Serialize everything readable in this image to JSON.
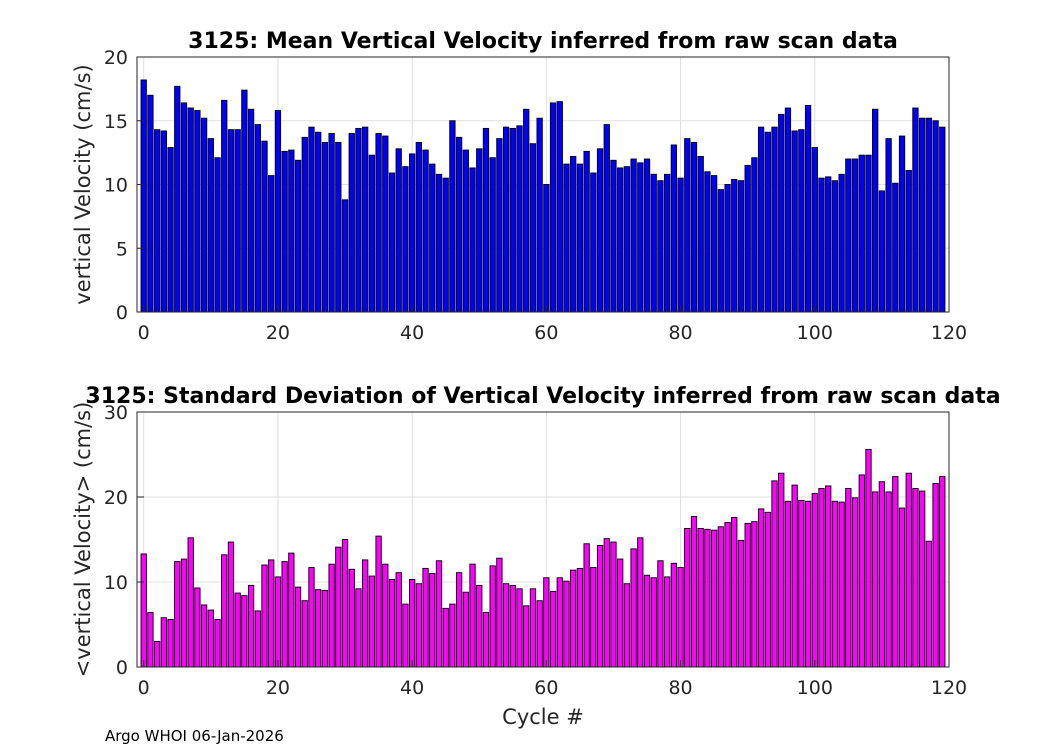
{
  "footer": "Argo WHOI 06-Jan-2026",
  "chart_data": [
    {
      "type": "bar",
      "title": "3125: Mean Vertical Velocity inferred from raw scan data",
      "xlabel": "",
      "ylabel": "vertical Velocity (cm/s)",
      "xlim": [
        -1,
        120
      ],
      "ylim": [
        0,
        20
      ],
      "xticks": [
        "0",
        "20",
        "40",
        "60",
        "80",
        "100",
        "120"
      ],
      "yticks": [
        "0",
        "5",
        "10",
        "15",
        "20"
      ],
      "bar_color": "#0000ff",
      "x": [
        0,
        1,
        2,
        3,
        4,
        5,
        6,
        7,
        8,
        9,
        10,
        11,
        12,
        13,
        14,
        15,
        16,
        17,
        18,
        19,
        20,
        21,
        22,
        23,
        24,
        25,
        26,
        27,
        28,
        29,
        30,
        31,
        32,
        33,
        34,
        35,
        36,
        37,
        38,
        39,
        40,
        41,
        42,
        43,
        44,
        45,
        46,
        47,
        48,
        49,
        50,
        51,
        52,
        53,
        54,
        55,
        56,
        57,
        58,
        59,
        60,
        61,
        62,
        63,
        64,
        65,
        66,
        67,
        68,
        69,
        70,
        71,
        72,
        73,
        74,
        75,
        76,
        77,
        78,
        79,
        80,
        81,
        82,
        83,
        84,
        85,
        86,
        87,
        88,
        89,
        90,
        91,
        92,
        93,
        94,
        95,
        96,
        97,
        98,
        99,
        100,
        101,
        102,
        103,
        104,
        105,
        106,
        107,
        108,
        109,
        110,
        111,
        112,
        113,
        114,
        115,
        116,
        117,
        118,
        119
      ],
      "values": [
        18.2,
        17.0,
        14.3,
        14.2,
        12.9,
        17.7,
        16.4,
        16.0,
        15.8,
        15.2,
        13.6,
        12.1,
        16.6,
        14.3,
        14.3,
        17.4,
        15.9,
        14.7,
        13.4,
        10.7,
        15.8,
        12.6,
        12.7,
        11.9,
        13.7,
        14.5,
        14.1,
        13.3,
        14.0,
        13.3,
        8.8,
        14.0,
        14.4,
        14.5,
        12.3,
        14.0,
        13.8,
        10.9,
        12.8,
        11.4,
        12.4,
        13.3,
        12.7,
        11.6,
        10.8,
        10.5,
        15.0,
        13.7,
        12.7,
        11.3,
        12.8,
        14.4,
        12.1,
        13.6,
        14.5,
        14.4,
        14.6,
        15.9,
        13.2,
        15.2,
        10.0,
        16.4,
        16.5,
        11.6,
        12.2,
        11.6,
        12.6,
        10.9,
        12.8,
        14.7,
        11.9,
        11.3,
        11.4,
        12.0,
        11.7,
        12.0,
        10.8,
        10.3,
        10.8,
        13.1,
        10.5,
        13.6,
        13.3,
        12.2,
        11.0,
        10.7,
        9.6,
        10.0,
        10.4,
        10.3,
        11.5,
        12.1,
        14.5,
        14.1,
        14.5,
        15.5,
        16.0,
        14.2,
        14.3,
        16.2,
        12.9,
        10.5,
        10.6,
        10.3,
        10.8,
        12.0,
        12.0,
        12.3,
        12.3,
        15.9,
        9.5,
        13.6,
        10.1,
        13.8,
        11.1,
        16.0,
        15.2,
        15.2,
        15.0,
        14.5
      ]
    },
    {
      "type": "bar",
      "title": "3125: Standard Deviation of Vertical Velocity inferred from raw scan data",
      "xlabel": "Cycle #",
      "ylabel": "<vertical Velocity> (cm/s)",
      "xlim": [
        -1,
        120
      ],
      "ylim": [
        0,
        30
      ],
      "xticks": [
        "0",
        "20",
        "40",
        "60",
        "80",
        "100",
        "120"
      ],
      "yticks": [
        "0",
        "10",
        "20",
        "30"
      ],
      "bar_color": "#ff00ff",
      "x": [
        0,
        1,
        2,
        3,
        4,
        5,
        6,
        7,
        8,
        9,
        10,
        11,
        12,
        13,
        14,
        15,
        16,
        17,
        18,
        19,
        20,
        21,
        22,
        23,
        24,
        25,
        26,
        27,
        28,
        29,
        30,
        31,
        32,
        33,
        34,
        35,
        36,
        37,
        38,
        39,
        40,
        41,
        42,
        43,
        44,
        45,
        46,
        47,
        48,
        49,
        50,
        51,
        52,
        53,
        54,
        55,
        56,
        57,
        58,
        59,
        60,
        61,
        62,
        63,
        64,
        65,
        66,
        67,
        68,
        69,
        70,
        71,
        72,
        73,
        74,
        75,
        76,
        77,
        78,
        79,
        80,
        81,
        82,
        83,
        84,
        85,
        86,
        87,
        88,
        89,
        90,
        91,
        92,
        93,
        94,
        95,
        96,
        97,
        98,
        99,
        100,
        101,
        102,
        103,
        104,
        105,
        106,
        107,
        108,
        109,
        110,
        111,
        112,
        113,
        114,
        115,
        116,
        117,
        118,
        119
      ],
      "values": [
        13.3,
        6.4,
        3.0,
        5.8,
        5.6,
        12.4,
        12.7,
        15.2,
        9.3,
        7.3,
        6.7,
        5.6,
        13.2,
        14.7,
        8.7,
        8.4,
        9.6,
        6.6,
        12.0,
        12.6,
        10.6,
        12.4,
        13.4,
        9.4,
        7.8,
        11.7,
        9.1,
        9.0,
        12.1,
        14.1,
        15.0,
        11.5,
        9.2,
        12.6,
        10.7,
        15.4,
        12.1,
        10.3,
        11.1,
        7.4,
        10.3,
        9.8,
        11.6,
        11.0,
        12.5,
        6.9,
        7.4,
        11.1,
        8.8,
        12.1,
        9.6,
        6.4,
        11.9,
        12.8,
        9.8,
        9.6,
        9.2,
        7.2,
        9.2,
        7.8,
        10.5,
        8.9,
        10.5,
        10.1,
        11.4,
        11.6,
        14.5,
        11.7,
        14.3,
        15.1,
        14.7,
        12.7,
        9.8,
        13.9,
        15.2,
        10.8,
        10.5,
        12.5,
        10.6,
        12.2,
        11.7,
        16.3,
        17.7,
        16.3,
        16.2,
        16.1,
        16.5,
        17.0,
        17.6,
        14.9,
        16.9,
        17.1,
        18.6,
        18.2,
        21.9,
        22.8,
        19.5,
        21.4,
        19.6,
        19.5,
        20.4,
        21.0,
        21.3,
        19.5,
        19.4,
        21.0,
        19.9,
        22.6,
        25.6,
        20.6,
        21.8,
        20.6,
        22.4,
        18.7,
        22.8,
        21.0,
        20.7,
        14.8,
        21.6,
        22.4
      ]
    }
  ]
}
